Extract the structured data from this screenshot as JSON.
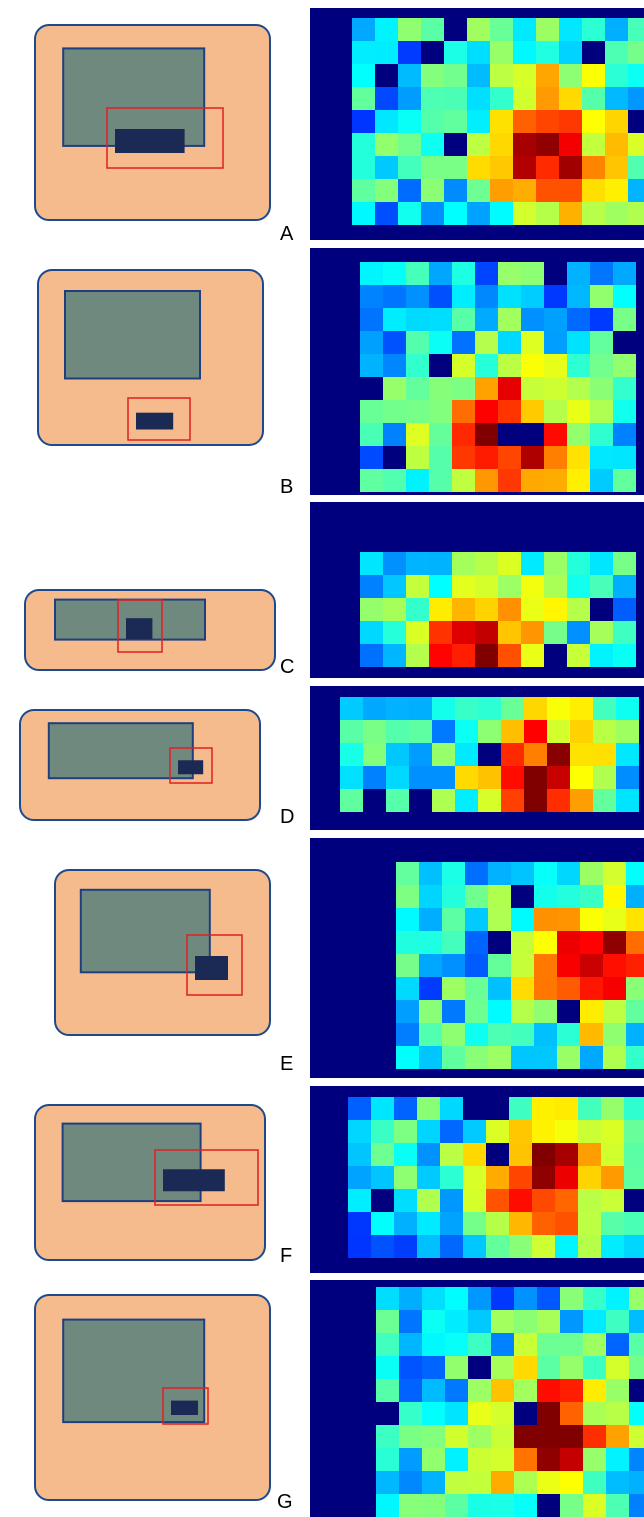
{
  "panels": [
    {
      "label": "A"
    },
    {
      "label": "B"
    },
    {
      "label": "C"
    },
    {
      "label": "D"
    },
    {
      "label": "E"
    },
    {
      "label": "F"
    },
    {
      "label": "G"
    }
  ]
}
